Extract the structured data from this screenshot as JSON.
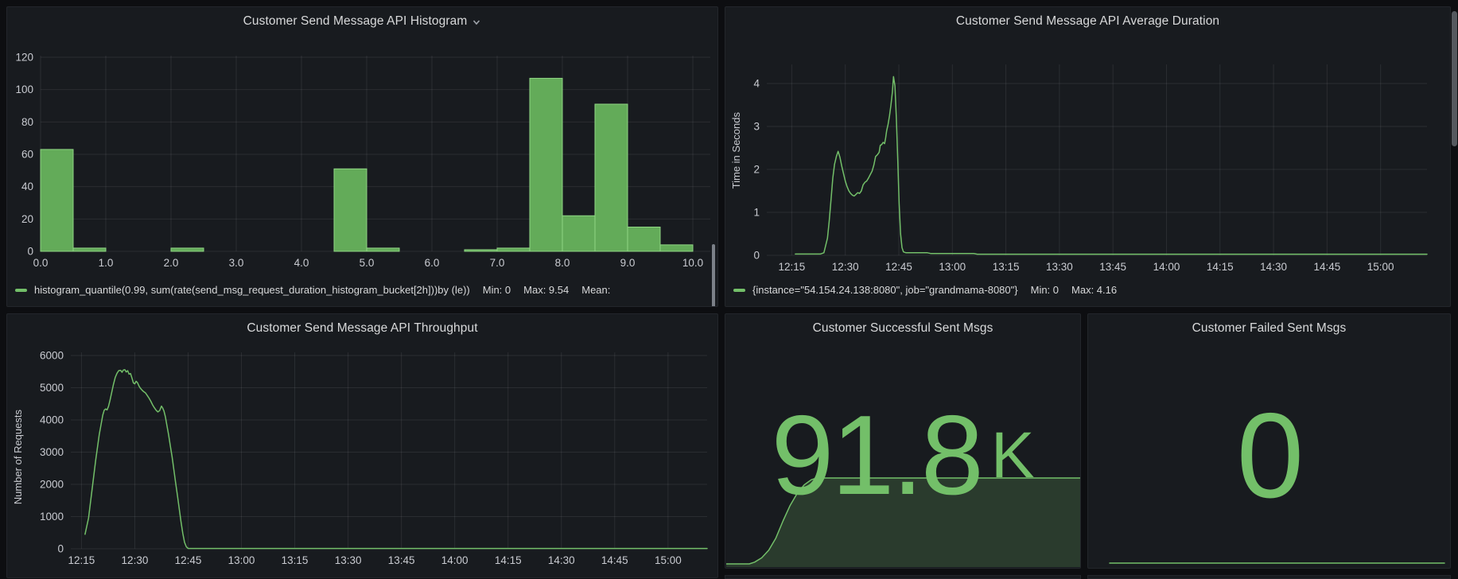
{
  "colors": {
    "green": "#73bf69",
    "panel_bg": "#181b1f",
    "page_bg": "#0d0e11",
    "bar_fill": "#63ab59",
    "bar_stroke": "#8fd584",
    "spark_fill": "rgba(115,191,105,0.20)"
  },
  "panels": {
    "success": {
      "title": "Customer Successful Sent Msgs",
      "value": "91.8",
      "unit": "K"
    },
    "failed": {
      "title": "Customer Failed Sent Msgs",
      "value": "0"
    }
  },
  "chart_data": [
    {
      "id": "histogram",
      "type": "bar",
      "title": "Customer Send Message API Histogram",
      "series_label": "histogram_quantile(0.99, sum(rate(send_msg_request_duration_histogram_bucket[2h]))by (le))",
      "stats": {
        "min": "Min: 0",
        "max": "Max: 9.54",
        "mean": "Mean:"
      },
      "bucket_size": 0.5,
      "buckets": [
        0,
        0.5,
        1,
        1.5,
        2,
        2.5,
        3,
        3.5,
        4,
        4.5,
        5,
        5.5,
        6,
        6.5,
        7,
        7.5,
        8,
        8.5,
        9,
        9.5
      ],
      "values": [
        63,
        2,
        0,
        0,
        2,
        0,
        0,
        0,
        0,
        51,
        2,
        0,
        0,
        1,
        2,
        107,
        22,
        91,
        15,
        4
      ],
      "x_tick_labels": [
        "0.0",
        "1.0",
        "2.0",
        "3.0",
        "4.0",
        "5.0",
        "6.0",
        "7.0",
        "8.0",
        "9.0",
        "10.0"
      ],
      "y_ticks": [
        0,
        20,
        40,
        60,
        80,
        100,
        120
      ],
      "ylim": [
        0,
        120
      ],
      "xlim": [
        0,
        10.3
      ],
      "grid": true
    },
    {
      "id": "duration",
      "type": "line",
      "title": "Customer Send Message API Average Duration",
      "ylabel": "Time in Seconds",
      "series_label": "{instance=\"54.154.24.138:8080\", job=\"grandmama-8080\"}",
      "stats": {
        "min": "Min: 0",
        "max": "Max: 4.16"
      },
      "y_ticks": [
        0,
        1,
        2,
        3,
        4
      ],
      "ylim": [
        0,
        4.45
      ],
      "x_tick_minutes": [
        735,
        750,
        765,
        780,
        795,
        810,
        825,
        840,
        855,
        870,
        885,
        900
      ],
      "x_tick_labels": [
        "12:15",
        "12:30",
        "12:45",
        "13:00",
        "13:15",
        "13:30",
        "13:45",
        "14:00",
        "14:15",
        "14:30",
        "14:45",
        "15:00"
      ],
      "xlim_minutes": [
        728,
        913
      ],
      "points": [
        [
          736,
          0.03
        ],
        [
          743,
          0.03
        ],
        [
          744,
          0.06
        ],
        [
          745,
          0.4
        ],
        [
          745.5,
          0.8
        ],
        [
          746,
          1.3
        ],
        [
          746.5,
          1.8
        ],
        [
          747,
          2.12
        ],
        [
          747.5,
          2.3
        ],
        [
          748,
          2.42
        ],
        [
          748.5,
          2.28
        ],
        [
          749,
          2.08
        ],
        [
          749.5,
          1.9
        ],
        [
          750,
          1.73
        ],
        [
          750.5,
          1.6
        ],
        [
          751,
          1.5
        ],
        [
          751.5,
          1.44
        ],
        [
          752,
          1.4
        ],
        [
          752.5,
          1.38
        ],
        [
          753,
          1.42
        ],
        [
          753.5,
          1.46
        ],
        [
          754,
          1.44
        ],
        [
          754.5,
          1.5
        ],
        [
          755,
          1.64
        ],
        [
          755.5,
          1.7
        ],
        [
          756,
          1.73
        ],
        [
          756.5,
          1.8
        ],
        [
          757,
          1.88
        ],
        [
          757.5,
          1.96
        ],
        [
          758,
          2.1
        ],
        [
          758.5,
          2.3
        ],
        [
          759,
          2.34
        ],
        [
          759.5,
          2.4
        ],
        [
          759.8,
          2.56
        ],
        [
          760.2,
          2.58
        ],
        [
          760.6,
          2.63
        ],
        [
          761,
          2.6
        ],
        [
          761.3,
          2.73
        ],
        [
          761.6,
          2.9
        ],
        [
          762,
          3.05
        ],
        [
          762.4,
          3.25
        ],
        [
          762.8,
          3.5
        ],
        [
          763.2,
          3.8
        ],
        [
          763.5,
          4.16
        ],
        [
          763.9,
          3.95
        ],
        [
          764.3,
          3.2
        ],
        [
          764.7,
          2.2
        ],
        [
          765.1,
          1.2
        ],
        [
          765.5,
          0.5
        ],
        [
          765.9,
          0.18
        ],
        [
          766.3,
          0.08
        ],
        [
          767,
          0.06
        ],
        [
          773,
          0.06
        ],
        [
          774,
          0.04
        ],
        [
          786,
          0.04
        ],
        [
          787,
          0.025
        ],
        [
          913,
          0.025
        ]
      ],
      "grid": true
    },
    {
      "id": "throughput",
      "type": "line",
      "title": "Customer Send Message API Throughput",
      "ylabel": "Number of Requests",
      "y_ticks": [
        0,
        1000,
        2000,
        3000,
        4000,
        5000,
        6000
      ],
      "ylim": [
        0,
        6200
      ],
      "x_tick_minutes": [
        735,
        750,
        765,
        780,
        795,
        810,
        825,
        840,
        855,
        870,
        885,
        900
      ],
      "x_tick_labels": [
        "12:15",
        "12:30",
        "12:45",
        "13:00",
        "13:15",
        "13:30",
        "13:45",
        "14:00",
        "14:15",
        "14:30",
        "14:45",
        "15:00"
      ],
      "xlim_minutes": [
        732,
        911
      ],
      "points": [
        [
          736,
          450
        ],
        [
          737,
          950
        ],
        [
          738,
          1850
        ],
        [
          739,
          2750
        ],
        [
          740,
          3550
        ],
        [
          741,
          4150
        ],
        [
          741.4,
          4300
        ],
        [
          741.8,
          4340
        ],
        [
          742.2,
          4310
        ],
        [
          742.6,
          4420
        ],
        [
          743,
          4600
        ],
        [
          743.5,
          4850
        ],
        [
          744,
          5100
        ],
        [
          744.5,
          5320
        ],
        [
          745,
          5450
        ],
        [
          745.5,
          5530
        ],
        [
          746,
          5540
        ],
        [
          746.4,
          5480
        ],
        [
          746.8,
          5550
        ],
        [
          747.2,
          5560
        ],
        [
          747.6,
          5490
        ],
        [
          748,
          5530
        ],
        [
          748.4,
          5420
        ],
        [
          748.8,
          5440
        ],
        [
          749.2,
          5300
        ],
        [
          749.6,
          5150
        ],
        [
          750,
          5120
        ],
        [
          750.4,
          5200
        ],
        [
          750.8,
          5150
        ],
        [
          751.2,
          5050
        ],
        [
          751.6,
          4980
        ],
        [
          752,
          4930
        ],
        [
          752.5,
          4880
        ],
        [
          753,
          4840
        ],
        [
          753.5,
          4760
        ],
        [
          754,
          4680
        ],
        [
          754.5,
          4580
        ],
        [
          755,
          4470
        ],
        [
          755.5,
          4380
        ],
        [
          756,
          4300
        ],
        [
          756.5,
          4250
        ],
        [
          757,
          4290
        ],
        [
          757.5,
          4430
        ],
        [
          757.8,
          4380
        ],
        [
          758.2,
          4280
        ],
        [
          758.6,
          4100
        ],
        [
          759,
          3850
        ],
        [
          759.5,
          3550
        ],
        [
          760,
          3200
        ],
        [
          760.5,
          2850
        ],
        [
          761,
          2450
        ],
        [
          761.5,
          2050
        ],
        [
          762,
          1650
        ],
        [
          762.5,
          1250
        ],
        [
          763,
          850
        ],
        [
          763.5,
          480
        ],
        [
          764,
          200
        ],
        [
          764.5,
          60
        ],
        [
          765,
          10
        ],
        [
          911,
          10
        ]
      ],
      "grid": true
    },
    {
      "id": "spark-success",
      "type": "area",
      "title": "Customer Successful Sent Msgs sparkline",
      "points_norm": [
        [
          0,
          0
        ],
        [
          0.065,
          0
        ],
        [
          0.08,
          0.02
        ],
        [
          0.1,
          0.07
        ],
        [
          0.12,
          0.16
        ],
        [
          0.14,
          0.3
        ],
        [
          0.16,
          0.5
        ],
        [
          0.18,
          0.68
        ],
        [
          0.2,
          0.82
        ],
        [
          0.22,
          0.92
        ],
        [
          0.24,
          0.98
        ],
        [
          0.255,
          1
        ],
        [
          1,
          1
        ]
      ]
    },
    {
      "id": "spark-failed",
      "type": "line",
      "title": "Customer Failed Sent Msgs sparkline",
      "value": 0
    }
  ]
}
